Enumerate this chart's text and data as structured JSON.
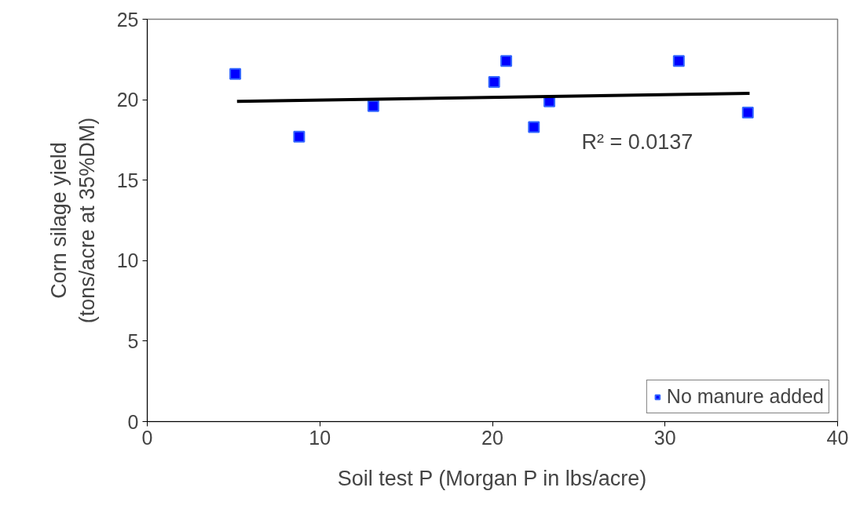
{
  "chart_data": {
    "type": "scatter",
    "xlabel": "Soil test P (Morgan P in lbs/acre)",
    "ylabel": "Corn silage yield\n(tons/acre at 35%DM)",
    "xlim": [
      0,
      40
    ],
    "xticks": [
      0,
      10,
      20,
      30,
      40
    ],
    "ylim": [
      0,
      25
    ],
    "yticks": [
      0,
      5,
      10,
      15,
      20,
      25
    ],
    "grid": false,
    "legend": "bottom right",
    "annotations": [
      "R² = 0.0137"
    ],
    "series": [
      {
        "name": "No manure added",
        "marker": "square",
        "color": "#0000ff",
        "x": [
          5.1,
          8.8,
          13.1,
          20.1,
          20.8,
          22.4,
          23.3,
          30.8,
          34.8
        ],
        "values": [
          21.6,
          17.7,
          19.6,
          21.1,
          22.4,
          18.3,
          19.9,
          22.4,
          19.2
        ]
      },
      {
        "type": "line",
        "marker": "none",
        "color": "#000000",
        "x": [
          5.2,
          34.9
        ],
        "values": [
          19.9,
          20.4
        ]
      }
    ]
  }
}
